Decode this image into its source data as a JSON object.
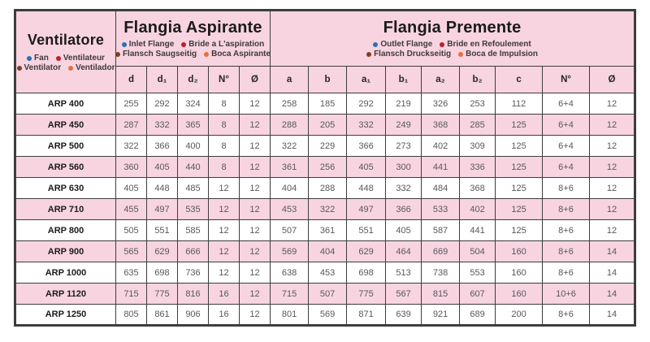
{
  "colors": {
    "pink_row": "#f8d4e1",
    "border": "#3d3d3d",
    "blue": "#2d6fb7",
    "red": "#be1e2d",
    "brown": "#7f3f1f",
    "orange": "#e96f3c"
  },
  "header": {
    "ventilatore": {
      "title": "Ventilatore",
      "legend": [
        [
          {
            "label": "Fan",
            "color": "blue"
          },
          {
            "label": "Ventilateur",
            "color": "red"
          }
        ],
        [
          {
            "label": "Ventilator",
            "color": "brown"
          },
          {
            "label": "Ventilador",
            "color": "orange"
          }
        ]
      ]
    },
    "aspirante": {
      "title": "Flangia Aspirante",
      "legend": [
        [
          {
            "label": "Inlet Flange",
            "color": "blue"
          },
          {
            "label": "Bride a L'aspiration",
            "color": "red"
          }
        ],
        [
          {
            "label": "Flansch Saugseitig",
            "color": "brown"
          },
          {
            "label": "Boca Aspirante",
            "color": "orange"
          }
        ]
      ]
    },
    "premente": {
      "title": "Flangia Premente",
      "legend": [
        [
          {
            "label": "Outlet Flange",
            "color": "blue"
          },
          {
            "label": "Bride en Refoulement",
            "color": "red"
          }
        ],
        [
          {
            "label": "Flansch Druckseitig",
            "color": "brown"
          },
          {
            "label": "Boca de Impulsion",
            "color": "orange"
          }
        ]
      ]
    },
    "columns_aspirante": [
      "d",
      "d₁",
      "d₂",
      "N°",
      "Ø"
    ],
    "columns_premente": [
      "a",
      "b",
      "a₁",
      "b₁",
      "a₂",
      "b₂",
      "c",
      "N°",
      "Ø"
    ]
  },
  "table": {
    "rows": [
      {
        "model": "ARP 400",
        "values": [
          "255",
          "292",
          "324",
          "8",
          "12",
          "258",
          "185",
          "292",
          "219",
          "326",
          "253",
          "112",
          "6+4",
          "12"
        ]
      },
      {
        "model": "ARP 450",
        "values": [
          "287",
          "332",
          "365",
          "8",
          "12",
          "288",
          "205",
          "332",
          "249",
          "368",
          "285",
          "125",
          "6+4",
          "12"
        ]
      },
      {
        "model": "ARP 500",
        "values": [
          "322",
          "366",
          "400",
          "8",
          "12",
          "322",
          "229",
          "366",
          "273",
          "402",
          "309",
          "125",
          "6+4",
          "12"
        ]
      },
      {
        "model": "ARP 560",
        "values": [
          "360",
          "405",
          "440",
          "8",
          "12",
          "361",
          "256",
          "405",
          "300",
          "441",
          "336",
          "125",
          "6+4",
          "12"
        ]
      },
      {
        "model": "ARP 630",
        "values": [
          "405",
          "448",
          "485",
          "12",
          "12",
          "404",
          "288",
          "448",
          "332",
          "484",
          "368",
          "125",
          "8+6",
          "12"
        ]
      },
      {
        "model": "ARP 710",
        "values": [
          "455",
          "497",
          "535",
          "12",
          "12",
          "453",
          "322",
          "497",
          "366",
          "533",
          "402",
          "125",
          "8+6",
          "12"
        ]
      },
      {
        "model": "ARP 800",
        "values": [
          "505",
          "551",
          "585",
          "12",
          "12",
          "507",
          "361",
          "551",
          "405",
          "587",
          "441",
          "125",
          "8+6",
          "12"
        ]
      },
      {
        "model": "ARP 900",
        "values": [
          "565",
          "629",
          "666",
          "12",
          "12",
          "569",
          "404",
          "629",
          "464",
          "669",
          "504",
          "160",
          "8+6",
          "14"
        ]
      },
      {
        "model": "ARP 1000",
        "values": [
          "635",
          "698",
          "736",
          "12",
          "12",
          "638",
          "453",
          "698",
          "513",
          "738",
          "553",
          "160",
          "8+6",
          "14"
        ]
      },
      {
        "model": "ARP 1120",
        "values": [
          "715",
          "775",
          "816",
          "16",
          "12",
          "715",
          "507",
          "775",
          "567",
          "815",
          "607",
          "160",
          "10+6",
          "14"
        ]
      },
      {
        "model": "ARP 1250",
        "values": [
          "805",
          "861",
          "906",
          "16",
          "12",
          "801",
          "569",
          "871",
          "639",
          "921",
          "689",
          "200",
          "8+6",
          "14"
        ]
      }
    ]
  }
}
